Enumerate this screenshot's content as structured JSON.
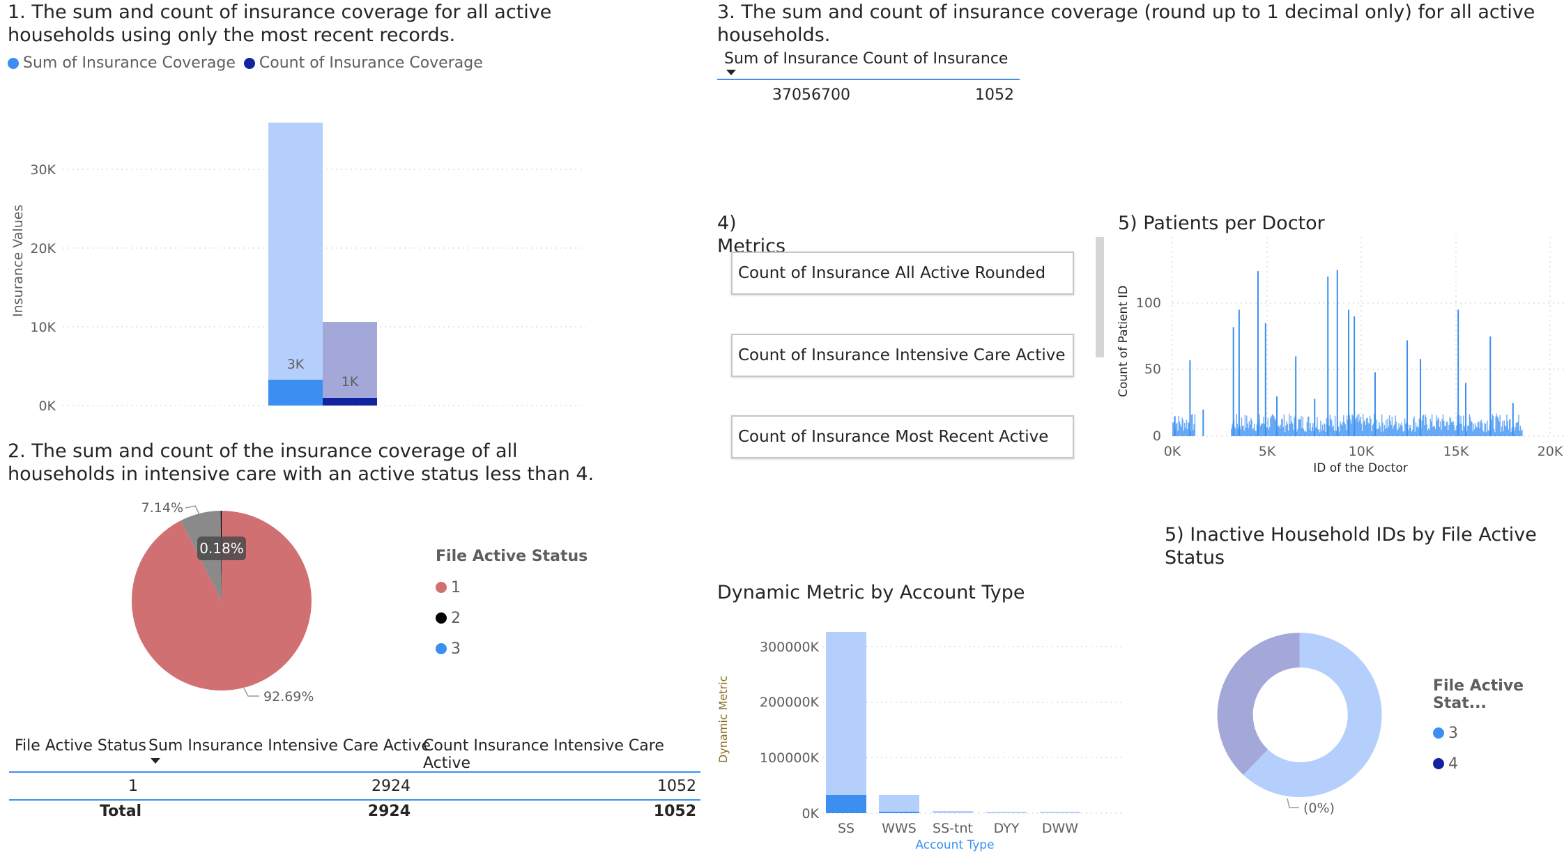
{
  "visual1": {
    "title_line1": "1. The sum and count of insurance coverage for all active",
    "title_line2": "households using only the most recent records.",
    "legend": [
      {
        "label": "Sum of Insurance Coverage",
        "color": "#3a8ff0"
      },
      {
        "label": "Count of Insurance Coverage",
        "color": "#12239e"
      }
    ],
    "ylabel": "Insurance Values",
    "yticks": [
      "0K",
      "10K",
      "20K",
      "30K"
    ],
    "bar_labels": [
      "3K",
      "1K"
    ]
  },
  "visual2": {
    "title_line1": "2. The sum and count of the insurance coverage of all",
    "title_line2": "households in intensive care with an active status less than 4.",
    "legend_title": "File Active Status",
    "legend": [
      {
        "label": "1",
        "color": "#d07072"
      },
      {
        "label": "2",
        "color": "#000000"
      },
      {
        "label": "3",
        "color": "#3a8ff0"
      }
    ],
    "slice_labels": {
      "large": "92.69%",
      "small": "7.14%",
      "tooltip": "0.18%"
    },
    "table": {
      "headers": [
        "File Active Status",
        "Sum Insurance Intensive Care Active",
        "Count Insurance Intensive Care Active"
      ],
      "rows": [
        [
          "1",
          "2924",
          "1052"
        ]
      ],
      "total": [
        "Total",
        "2924",
        "1052"
      ]
    }
  },
  "visual3": {
    "title_line1": "3. The sum and count of insurance coverage (round up to 1 decimal only) for all active",
    "title_line2": "households.",
    "headers": [
      "Sum of Insurance",
      "Count of Insurance"
    ],
    "values": [
      "37056700",
      "1052"
    ]
  },
  "visual4": {
    "title": "4) Metrics",
    "buttons": [
      "Count of Insurance All Active Rounded",
      "Count of Insurance Intensive Care Active",
      "Count of Insurance Most Recent Active"
    ]
  },
  "visual5a": {
    "title": "5) Patients per Doctor",
    "ylabel": "Count of Patient ID",
    "xlabel": "ID of the Doctor",
    "yticks": [
      "0",
      "50",
      "100"
    ],
    "xticks": [
      "0K",
      "5K",
      "10K",
      "15K",
      "20K"
    ]
  },
  "visual6": {
    "title": "Dynamic Metric by Account Type",
    "ylabel": "Dynamic Metric",
    "xlabel": "Account Type",
    "yticks": [
      "0K",
      "100000K",
      "200000K",
      "300000K"
    ],
    "categories": [
      "SS",
      "WWS",
      "SS-tnt",
      "DYY",
      "DWW"
    ]
  },
  "visual5b": {
    "title_line1": "5) Inactive Household IDs by File Active",
    "title_line2": "Status",
    "legend_title": "File Active Stat...",
    "legend": [
      {
        "label": "3",
        "color": "#3a8ff0"
      },
      {
        "label": "4",
        "color": "#12239e"
      }
    ],
    "slice_label": "(0%)"
  },
  "chart_data": [
    {
      "type": "bar",
      "title": "1. The sum and count of insurance coverage for all active households using only the most recent records.",
      "ylabel": "Insurance Values",
      "ylim": [
        0,
        36000
      ],
      "grid": true,
      "legend_position": "top-left",
      "series": [
        {
          "name": "Sum of Insurance Coverage",
          "total": 35600,
          "highlighted": 3300
        },
        {
          "name": "Count of Insurance Coverage",
          "total": 10700,
          "highlighted": 1000
        }
      ]
    },
    {
      "type": "pie",
      "title": "2. The sum and count of the insurance coverage of all households in intensive care with an active status less than 4.",
      "legend_position": "right",
      "categories": [
        "1",
        "2",
        "3"
      ],
      "values": [
        92.69,
        0.18,
        7.14
      ]
    },
    {
      "type": "table",
      "headers": [
        "Sum of Insurance",
        "Count of Insurance"
      ],
      "rows": [
        [
          37056700,
          1052
        ]
      ]
    },
    {
      "type": "bar",
      "title": "5) Patients per Doctor",
      "xlabel": "ID of the Doctor",
      "ylabel": "Count of Patient ID",
      "xlim": [
        0,
        20000
      ],
      "ylim": [
        0,
        130
      ],
      "grid": true,
      "x": [
        100,
        900,
        1600,
        3200,
        3500,
        4500,
        4900,
        5500,
        6500,
        7500,
        8200,
        8700,
        9300,
        9600,
        10700,
        12400,
        13100,
        15100,
        15500,
        16800,
        18000
      ],
      "values": [
        15,
        57,
        20,
        82,
        95,
        124,
        85,
        30,
        60,
        28,
        120,
        125,
        95,
        90,
        48,
        72,
        58,
        95,
        40,
        75,
        25
      ]
    },
    {
      "type": "bar",
      "title": "Dynamic Metric by Account Type",
      "xlabel": "Account Type",
      "ylabel": "Dynamic Metric",
      "ylim": [
        0,
        330000
      ],
      "grid": true,
      "categories": [
        "SS",
        "WWS",
        "SS-tnt",
        "DYY",
        "DWW"
      ],
      "values": [
        328000,
        33000,
        3000,
        1500,
        1500
      ],
      "highlighted": [
        33000,
        3000,
        300,
        100,
        100
      ]
    },
    {
      "type": "pie",
      "title": "5) Inactive Household IDs by File Active Status",
      "legend_position": "right",
      "categories": [
        "3",
        "4"
      ],
      "values": [
        64,
        36
      ]
    }
  ]
}
